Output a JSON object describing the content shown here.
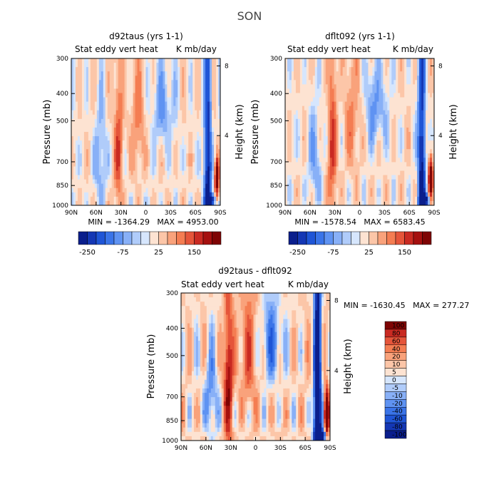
{
  "figure": {
    "title": "SON"
  },
  "colors": {
    "scale": [
      "#0a1e8c",
      "#1437b4",
      "#1f55d6",
      "#3a74e8",
      "#5f93f2",
      "#88b0f7",
      "#b0ccfa",
      "#d6e6fd",
      "#fde3d2",
      "#fcc6a8",
      "#f9a27b",
      "#f47d52",
      "#e5553a",
      "#c92a22",
      "#a5100f",
      "#7e0404"
    ],
    "diff_scale": [
      "#0a1e8c",
      "#1437b4",
      "#1f55d6",
      "#3a74e8",
      "#5f93f2",
      "#88b0f7",
      "#b0ccfa",
      "#d6e6fd",
      "#fde3d2",
      "#fcc6a8",
      "#f9a27b",
      "#f47d52",
      "#e5553a",
      "#c92a22",
      "#7e0404"
    ]
  },
  "chart_data": [
    {
      "type": "heatmap",
      "title": "d92taus (yrs 1-1)",
      "subtitle_left": "Stat eddy vert heat",
      "subtitle_right": "K mb/day",
      "xlabel": "",
      "ylabel": "Pressure (mb)",
      "y2label": "Height (km)",
      "x_ticks": [
        "90N",
        "60N",
        "30N",
        "0",
        "30S",
        "60S",
        "90S"
      ],
      "y_ticks": [
        "300",
        "400",
        "500",
        "700",
        "850",
        "1000"
      ],
      "y_tick_values": [
        300,
        400,
        500,
        700,
        850,
        1000
      ],
      "height_ticks": [
        "8",
        "4"
      ],
      "height_tick_values": [
        8,
        4
      ],
      "min": -1364.29,
      "max": 4953.0,
      "stats": "MIN = -1364.29   MAX = 4953.00",
      "colorbar_labels": [
        "-250",
        "-75",
        "25",
        "150"
      ]
    },
    {
      "type": "heatmap",
      "title": "dflt092 (yrs 1-1)",
      "subtitle_left": "Stat eddy vert heat",
      "subtitle_right": "K mb/day",
      "xlabel": "",
      "ylabel": "Pressure (mb)",
      "y2label": "Height (km)",
      "x_ticks": [
        "90N",
        "60N",
        "30N",
        "0",
        "30S",
        "60S",
        "90S"
      ],
      "y_ticks": [
        "300",
        "400",
        "500",
        "700",
        "850",
        "1000"
      ],
      "y_tick_values": [
        300,
        400,
        500,
        700,
        850,
        1000
      ],
      "height_ticks": [
        "8",
        "4"
      ],
      "height_tick_values": [
        8,
        4
      ],
      "min": -1578.54,
      "max": 6583.45,
      "stats": "MIN = -1578.54   MAX = 6583.45",
      "colorbar_labels": [
        "-250",
        "-75",
        "25",
        "150"
      ]
    },
    {
      "type": "heatmap",
      "title": "d92taus - dflt092",
      "subtitle_left": "Stat eddy vert heat",
      "subtitle_right": "K mb/day",
      "xlabel": "",
      "ylabel": "Pressure (mb)",
      "y2label": "Height (km)",
      "x_ticks": [
        "90N",
        "60N",
        "30N",
        "0",
        "30S",
        "60S",
        "90S"
      ],
      "y_ticks": [
        "300",
        "400",
        "500",
        "700",
        "850",
        "1000"
      ],
      "y_tick_values": [
        300,
        400,
        500,
        700,
        850,
        1000
      ],
      "height_ticks": [
        "8",
        "4"
      ],
      "height_tick_values": [
        8,
        4
      ],
      "min": -1630.45,
      "max": 277.27,
      "stats": "MIN = -1630.45   MAX = 277.27",
      "colorbar_labels": [
        "100",
        "80",
        "60",
        "40",
        "20",
        "10",
        "5",
        "0",
        "-5",
        "-10",
        "-20",
        "-40",
        "-60",
        "-80",
        "-100"
      ]
    }
  ]
}
